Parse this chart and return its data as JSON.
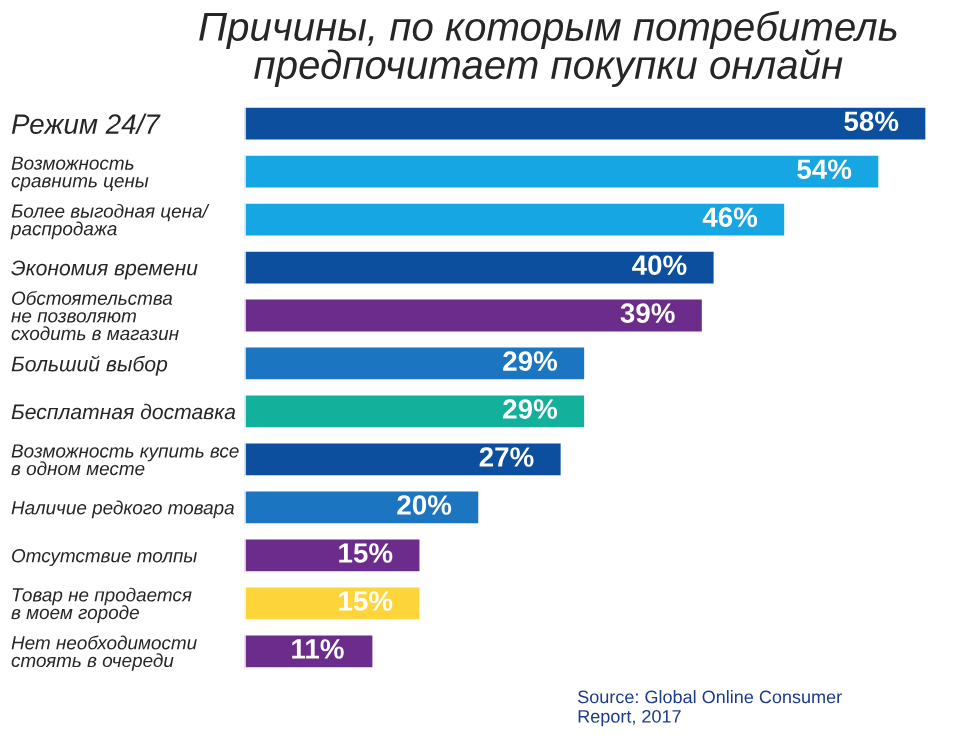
{
  "chart_data": {
    "type": "bar",
    "orientation": "horizontal",
    "title": "Причины, по которым потребитель\nпредпочитает покупки онлайн",
    "categories": [
      "Режим 24/7",
      "Возможность\nсравнить цены",
      "Более выгодная цена/\nраспродажа",
      "Экономия времени",
      "Обстоятельства\nне позволяют\nсходить в магазин",
      "Больший выбор",
      "Бесплатная доставка",
      "Возможность купить все\nв одном месте",
      "Наличие редкого товара",
      "Отсутствие толпы",
      "Товар не продается\nв моем городе",
      "Нет необходимости\nстоять в очереди"
    ],
    "values": [
      58,
      54,
      46,
      40,
      39,
      29,
      29,
      27,
      20,
      15,
      15,
      11
    ],
    "value_labels": [
      "58%",
      "54%",
      "46%",
      "40%",
      "39%",
      "29%",
      "29%",
      "27%",
      "20%",
      "15%",
      "15%",
      "11%"
    ],
    "colors": [
      "#0b4f9e",
      "#16a6e3",
      "#16a6e3",
      "#0b4f9e",
      "#6b2c8b",
      "#1c75c0",
      "#13b09c",
      "#0b4f9e",
      "#1c75c0",
      "#6b2c8b",
      "#fdd43a",
      "#6b2c8b"
    ],
    "annotations": [
      "Source: Global Online Consumer\nReport, 2017"
    ]
  }
}
